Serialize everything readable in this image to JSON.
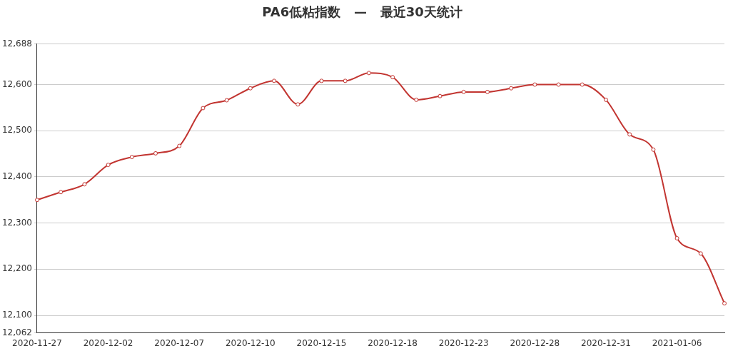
{
  "chart_data": {
    "type": "line",
    "title": "PA6低粘指数   —   最近30天统计",
    "categories": [
      "2020-11-27",
      null,
      null,
      "2020-12-02",
      null,
      null,
      "2020-12-07",
      null,
      null,
      "2020-12-10",
      null,
      null,
      "2020-12-15",
      null,
      null,
      "2020-12-18",
      null,
      null,
      "2020-12-23",
      null,
      null,
      "2020-12-28",
      null,
      null,
      "2020-12-31",
      null,
      null,
      "2021-01-06",
      null,
      null
    ],
    "series": [
      {
        "color": "#c23531",
        "values": [
          12350,
          12367,
          12384,
          12426,
          12443,
          12451,
          12467,
          12549,
          12566,
          12592,
          12608,
          12557,
          12608,
          12608,
          12625,
          12616,
          12567,
          12575,
          12584,
          12584,
          12592,
          12600,
          12600,
          12600,
          12567,
          12492,
          12459,
          12267,
          12234,
          12126
        ]
      }
    ],
    "ylim": [
      12062,
      12688
    ],
    "yticks": [
      {
        "value": 12062,
        "label": "12,062"
      },
      {
        "value": 12100,
        "label": "12,100"
      },
      {
        "value": 12200,
        "label": "12,200"
      },
      {
        "value": 12300,
        "label": "12,300"
      },
      {
        "value": 12400,
        "label": "12,400"
      },
      {
        "value": 12500,
        "label": "12,500"
      },
      {
        "value": 12600,
        "label": "12,600"
      },
      {
        "value": 12688,
        "label": "12,688"
      }
    ],
    "grid": "y",
    "legend": false,
    "marker": "circle",
    "line_style": "solid"
  }
}
